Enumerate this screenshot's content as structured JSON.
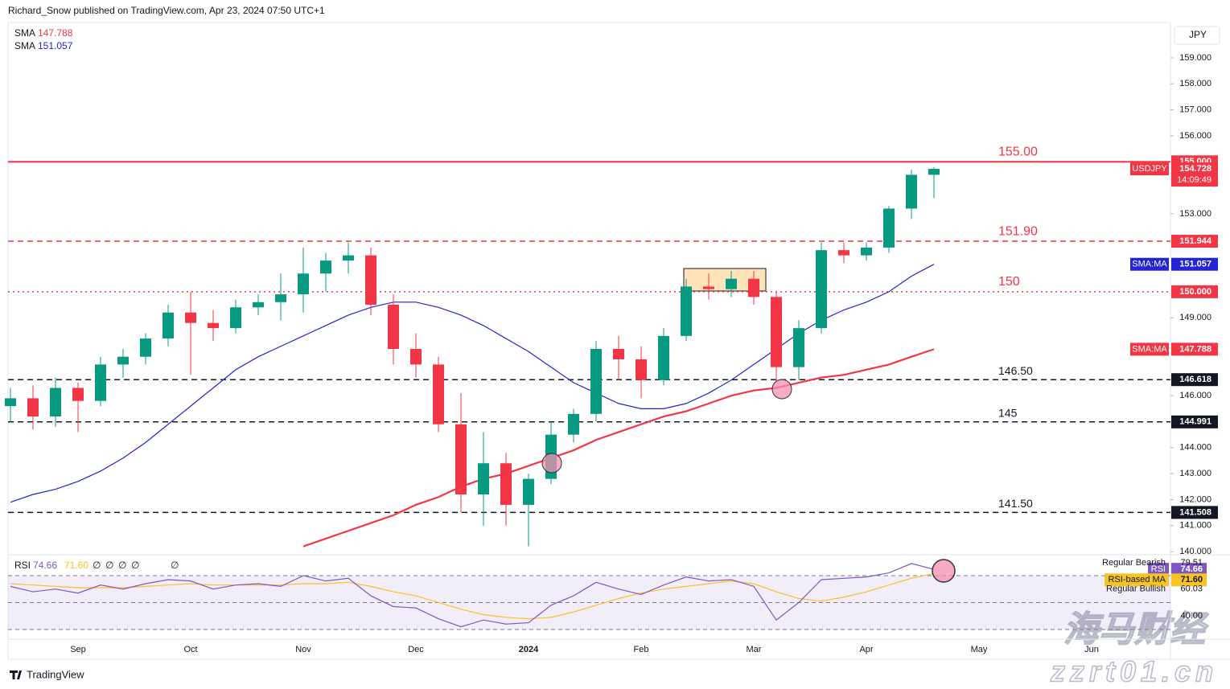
{
  "header": "Richard_Snow published on TradingView.com, Apr 23, 2024 07:50 UTC+1",
  "currency": "JPY",
  "brand": "TradingView",
  "watermark": [
    "海马财经",
    "zzrt01.cn"
  ],
  "chart_data": {
    "type": "candlestick",
    "symbol": "USDJPY",
    "countdown": "14:09:49",
    "up_color": "#089981",
    "down_color": "#f23645",
    "categories": [
      null,
      null,
      null,
      "Sep",
      null,
      null,
      null,
      null,
      "Oct",
      null,
      null,
      null,
      null,
      "Nov",
      null,
      null,
      null,
      null,
      "Dec",
      null,
      null,
      null,
      null,
      "2024",
      null,
      null,
      null,
      null,
      "Feb",
      null,
      null,
      null,
      null,
      "Mar",
      null,
      null,
      null,
      null,
      "Apr",
      null,
      null,
      null,
      null,
      "May",
      null,
      null,
      null,
      null,
      "Jun",
      null,
      null,
      null
    ],
    "open": [
      145.6,
      145.9,
      145.2,
      146.3,
      145.8,
      147.2,
      147.5,
      148.2,
      149.2,
      148.8,
      148.6,
      149.4,
      149.6,
      149.9,
      150.7,
      151.2,
      151.4,
      149.5,
      147.8,
      147.2,
      144.9,
      142.2,
      143.4,
      141.8,
      142.8,
      144.5,
      145.3,
      147.8,
      147.4,
      146.6,
      148.3,
      150.2,
      150.1,
      150.5,
      149.8,
      147.1,
      148.6,
      151.6,
      151.4,
      151.7,
      153.2,
      154.5,
      null,
      null,
      null,
      null,
      null,
      null,
      null,
      null,
      null,
      null
    ],
    "high": [
      146.3,
      146.4,
      146.7,
      146.5,
      147.5,
      147.8,
      148.4,
      149.5,
      150.0,
      149.3,
      149.7,
      149.9,
      150.7,
      151.7,
      151.5,
      151.9,
      151.7,
      149.9,
      148.4,
      147.5,
      146.1,
      144.6,
      143.8,
      143.0,
      145.0,
      145.5,
      148.1,
      148.3,
      147.9,
      148.6,
      150.5,
      150.7,
      150.8,
      150.8,
      150.0,
      148.9,
      151.9,
      151.9,
      151.9,
      153.3,
      154.7,
      154.8,
      null,
      null,
      null,
      null,
      null,
      null,
      null,
      null,
      null,
      null
    ],
    "low": [
      145.0,
      144.7,
      144.8,
      144.6,
      145.6,
      146.7,
      147.2,
      147.9,
      146.8,
      148.1,
      148.4,
      149.1,
      148.9,
      149.2,
      150.0,
      150.7,
      149.1,
      147.2,
      146.7,
      144.6,
      141.5,
      141.0,
      141.0,
      140.2,
      142.6,
      144.2,
      145.0,
      146.6,
      145.9,
      146.4,
      148.1,
      149.7,
      149.8,
      149.5,
      146.5,
      146.6,
      148.4,
      151.1,
      151.2,
      151.5,
      152.8,
      153.6,
      null,
      null,
      null,
      null,
      null,
      null,
      null,
      null,
      null,
      null
    ],
    "close": [
      145.9,
      145.2,
      146.3,
      145.8,
      147.2,
      147.5,
      148.2,
      149.2,
      148.8,
      148.6,
      149.4,
      149.6,
      149.9,
      150.7,
      151.2,
      151.4,
      149.5,
      147.8,
      147.2,
      144.9,
      142.2,
      143.4,
      141.8,
      142.8,
      144.5,
      145.3,
      147.8,
      147.4,
      146.6,
      148.3,
      150.2,
      150.1,
      150.5,
      149.8,
      147.1,
      148.6,
      151.6,
      151.4,
      151.7,
      153.2,
      154.5,
      154.728,
      null,
      null,
      null,
      null,
      null,
      null,
      null,
      null,
      null,
      null
    ],
    "last_label": "154.728",
    "series": [
      {
        "name": "SMA",
        "badge": "SMA:MA",
        "color": "#f23645",
        "width": 2.2,
        "last_label": "147.788",
        "values": [
          null,
          null,
          null,
          null,
          null,
          null,
          null,
          null,
          null,
          null,
          null,
          null,
          null,
          140.2,
          140.5,
          140.8,
          141.1,
          141.4,
          141.8,
          142.1,
          142.5,
          142.8,
          143.0,
          143.3,
          143.6,
          143.9,
          144.3,
          144.6,
          144.9,
          145.2,
          145.4,
          145.7,
          146.0,
          146.2,
          146.3,
          146.5,
          146.7,
          146.8,
          147.0,
          147.2,
          147.5,
          147.788,
          null,
          null,
          null,
          null,
          null,
          null,
          null,
          null,
          null,
          null
        ]
      },
      {
        "name": "SMA",
        "badge": "SMA:MA",
        "color": "#2424d6",
        "width": 1.2,
        "last_label": "151.057",
        "values": [
          141.9,
          142.2,
          142.4,
          142.7,
          143.1,
          143.6,
          144.2,
          144.9,
          145.6,
          146.3,
          147.0,
          147.5,
          147.9,
          148.3,
          148.7,
          149.1,
          149.4,
          149.6,
          149.6,
          149.4,
          149.1,
          148.7,
          148.2,
          147.7,
          147.1,
          146.5,
          146.1,
          145.7,
          145.5,
          145.5,
          145.7,
          146.1,
          146.6,
          147.2,
          147.8,
          148.4,
          148.9,
          149.3,
          149.6,
          150.0,
          150.6,
          151.057,
          null,
          null,
          null,
          null,
          null,
          null,
          null,
          null,
          null,
          null
        ]
      }
    ],
    "levels": [
      {
        "value": 155,
        "label": "155.000",
        "annotation": "155.00",
        "style": "solid",
        "color": "#f23645"
      },
      {
        "value": 151.944,
        "label": "151.944",
        "annotation": "151.90",
        "style": "dashed",
        "color": "#f23645"
      },
      {
        "value": 150,
        "label": "150.000",
        "annotation": "150",
        "style": "dotted",
        "color": "#f23645"
      },
      {
        "value": 146.618,
        "label": "146.618",
        "annotation": "146.50",
        "style": "dashed",
        "color": "#131722"
      },
      {
        "value": 144.991,
        "label": "144.991",
        "annotation": "145",
        "style": "dashed",
        "color": "#131722"
      },
      {
        "value": 141.508,
        "label": "141.508",
        "annotation": "141.50",
        "style": "dashed",
        "color": "#131722"
      }
    ],
    "ylim": [
      139.88,
      160.36
    ],
    "yticks": [
      {
        "value": 140,
        "label": "140.000"
      },
      {
        "value": 141,
        "label": "141.000"
      },
      {
        "value": 142,
        "label": "142.000"
      },
      {
        "value": 143,
        "label": "143.000"
      },
      {
        "value": 144,
        "label": "144.000"
      },
      {
        "value": 146,
        "label": "146.000"
      },
      {
        "value": 149,
        "label": "149.000"
      },
      {
        "value": 153,
        "label": "153.000"
      },
      {
        "value": 156,
        "label": "156.000"
      },
      {
        "value": 157,
        "label": "157.000"
      },
      {
        "value": 158,
        "label": "158.000"
      },
      {
        "value": 159,
        "label": "159.000"
      }
    ],
    "rsi": {
      "name": "RSI",
      "extras": [
        "∅",
        "∅",
        "∅",
        "∅",
        "∅"
      ],
      "ylim": [
        22.8,
        85.5
      ],
      "bands": [
        70,
        50,
        30
      ],
      "yticks": [
        {
          "value": 40,
          "label": "40.00"
        }
      ],
      "series": [
        {
          "name": "RSI",
          "color": "#7e57c2",
          "last_label": "74.66",
          "values": [
            62,
            58,
            60,
            57,
            63,
            60,
            64,
            67,
            66,
            60,
            63,
            64,
            62,
            70,
            66,
            68,
            55,
            47,
            46,
            38,
            32,
            37,
            34,
            35,
            48,
            55,
            65,
            60,
            56,
            63,
            69,
            66,
            67,
            62,
            37,
            50,
            67,
            68,
            69,
            72,
            79,
            74.66,
            null,
            null,
            null,
            null,
            null,
            null,
            null,
            null,
            null,
            null
          ]
        },
        {
          "name": "RSI-based MA",
          "color": "#f7c325",
          "last_label": "71.60",
          "values": [
            64,
            63,
            62,
            61,
            61,
            61,
            62,
            63,
            64,
            63,
            63,
            63,
            63,
            64,
            64,
            65,
            62,
            58,
            55,
            50,
            45,
            41,
            39,
            38,
            39,
            43,
            48,
            53,
            57,
            60,
            62,
            64,
            66,
            64,
            58,
            53,
            51,
            54,
            58,
            63,
            68,
            71.6,
            null,
            null,
            null,
            null,
            null,
            null,
            null,
            null,
            null,
            null
          ]
        }
      ],
      "divergences": [
        {
          "name": "Regular Bearish",
          "value": 79.51,
          "label": "79.51"
        },
        {
          "name": "Regular Bullish",
          "value": 60.03,
          "label": "60.03"
        }
      ]
    }
  }
}
